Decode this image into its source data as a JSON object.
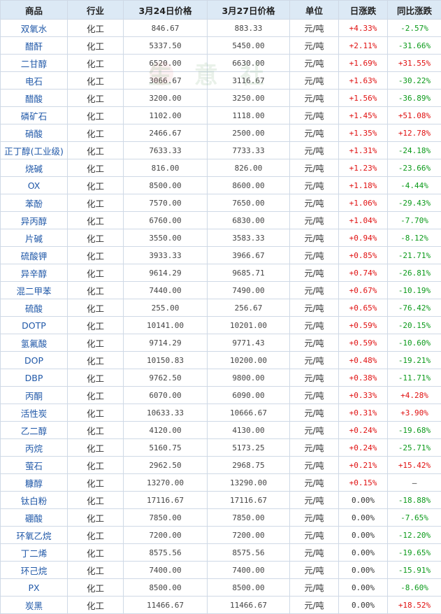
{
  "header": [
    "商品",
    "行业",
    "3月24日价格",
    "3月27日价格",
    "单位",
    "日涨跌",
    "同比涨跌"
  ],
  "rows": [
    [
      "双氧水",
      "化工",
      "846.67",
      "883.33",
      "元/吨",
      "+4.33%",
      "-2.57%"
    ],
    [
      "醋酐",
      "化工",
      "5337.50",
      "5450.00",
      "元/吨",
      "+2.11%",
      "-31.66%"
    ],
    [
      "二甘醇",
      "化工",
      "6520.00",
      "6630.00",
      "元/吨",
      "+1.69%",
      "+31.55%"
    ],
    [
      "电石",
      "化工",
      "3066.67",
      "3116.67",
      "元/吨",
      "+1.63%",
      "-30.22%"
    ],
    [
      "醋酸",
      "化工",
      "3200.00",
      "3250.00",
      "元/吨",
      "+1.56%",
      "-36.89%"
    ],
    [
      "磷矿石",
      "化工",
      "1102.00",
      "1118.00",
      "元/吨",
      "+1.45%",
      "+51.08%"
    ],
    [
      "硝酸",
      "化工",
      "2466.67",
      "2500.00",
      "元/吨",
      "+1.35%",
      "+12.78%"
    ],
    [
      "正丁醇(工业级)",
      "化工",
      "7633.33",
      "7733.33",
      "元/吨",
      "+1.31%",
      "-24.18%"
    ],
    [
      "烧碱",
      "化工",
      "816.00",
      "826.00",
      "元/吨",
      "+1.23%",
      "-23.66%"
    ],
    [
      "OX",
      "化工",
      "8500.00",
      "8600.00",
      "元/吨",
      "+1.18%",
      "-4.44%"
    ],
    [
      "苯酚",
      "化工",
      "7570.00",
      "7650.00",
      "元/吨",
      "+1.06%",
      "-29.43%"
    ],
    [
      "异丙醇",
      "化工",
      "6760.00",
      "6830.00",
      "元/吨",
      "+1.04%",
      "-7.70%"
    ],
    [
      "片碱",
      "化工",
      "3550.00",
      "3583.33",
      "元/吨",
      "+0.94%",
      "-8.12%"
    ],
    [
      "硫酸钾",
      "化工",
      "3933.33",
      "3966.67",
      "元/吨",
      "+0.85%",
      "-21.71%"
    ],
    [
      "异辛醇",
      "化工",
      "9614.29",
      "9685.71",
      "元/吨",
      "+0.74%",
      "-26.81%"
    ],
    [
      "混二甲苯",
      "化工",
      "7440.00",
      "7490.00",
      "元/吨",
      "+0.67%",
      "-10.19%"
    ],
    [
      "硫酸",
      "化工",
      "255.00",
      "256.67",
      "元/吨",
      "+0.65%",
      "-76.42%"
    ],
    [
      "DOTP",
      "化工",
      "10141.00",
      "10201.00",
      "元/吨",
      "+0.59%",
      "-20.15%"
    ],
    [
      "氢氟酸",
      "化工",
      "9714.29",
      "9771.43",
      "元/吨",
      "+0.59%",
      "-10.60%"
    ],
    [
      "DOP",
      "化工",
      "10150.83",
      "10200.00",
      "元/吨",
      "+0.48%",
      "-19.21%"
    ],
    [
      "DBP",
      "化工",
      "9762.50",
      "9800.00",
      "元/吨",
      "+0.38%",
      "-11.71%"
    ],
    [
      "丙酮",
      "化工",
      "6070.00",
      "6090.00",
      "元/吨",
      "+0.33%",
      "+4.28%"
    ],
    [
      "活性炭",
      "化工",
      "10633.33",
      "10666.67",
      "元/吨",
      "+0.31%",
      "+3.90%"
    ],
    [
      "乙二醇",
      "化工",
      "4120.00",
      "4130.00",
      "元/吨",
      "+0.24%",
      "-19.68%"
    ],
    [
      "丙烷",
      "化工",
      "5160.75",
      "5173.25",
      "元/吨",
      "+0.24%",
      "-25.71%"
    ],
    [
      "萤石",
      "化工",
      "2962.50",
      "2968.75",
      "元/吨",
      "+0.21%",
      "+15.42%"
    ],
    [
      "糠醇",
      "化工",
      "13270.00",
      "13290.00",
      "元/吨",
      "+0.15%",
      "—"
    ],
    [
      "钛白粉",
      "化工",
      "17116.67",
      "17116.67",
      "元/吨",
      "0.00%",
      "-18.88%"
    ],
    [
      "硼酸",
      "化工",
      "7850.00",
      "7850.00",
      "元/吨",
      "0.00%",
      "-7.65%"
    ],
    [
      "环氧乙烷",
      "化工",
      "7200.00",
      "7200.00",
      "元/吨",
      "0.00%",
      "-12.20%"
    ],
    [
      "丁二烯",
      "化工",
      "8575.56",
      "8575.56",
      "元/吨",
      "0.00%",
      "-19.65%"
    ],
    [
      "环己烷",
      "化工",
      "7400.00",
      "7400.00",
      "元/吨",
      "0.00%",
      "-15.91%"
    ],
    [
      "PX",
      "化工",
      "8500.00",
      "8500.00",
      "元/吨",
      "0.00%",
      "-8.60%"
    ],
    [
      "炭黑",
      "化工",
      "11466.67",
      "11466.67",
      "元/吨",
      "0.00%",
      "+18.52%"
    ]
  ],
  "watermark": "生 意 社"
}
